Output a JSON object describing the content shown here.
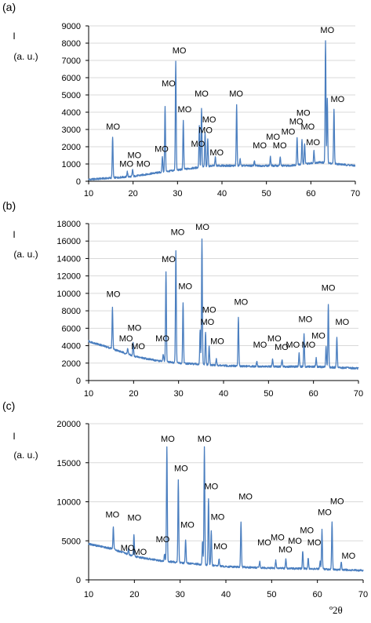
{
  "x_unit": "º2θ",
  "series_color": "#4a7ebf",
  "chart_data": [
    {
      "type": "line",
      "panel_label": "(a)",
      "ylabel_line1": "I",
      "ylabel_line2": "(a. u.)",
      "xlim": [
        10,
        70
      ],
      "ylim": [
        0,
        9000
      ],
      "xticks": [
        10,
        20,
        30,
        40,
        50,
        60,
        70
      ],
      "yticks": [
        0,
        1000,
        2000,
        3000,
        4000,
        5000,
        6000,
        7000,
        8000,
        9000
      ],
      "ytick_labels": [
        "0",
        "1000",
        "2000",
        "3000",
        "4000",
        "5000",
        "6000",
        "7000",
        "8000",
        "9000"
      ],
      "baseline": [
        [
          10,
          100
        ],
        [
          20,
          280
        ],
        [
          25,
          480
        ],
        [
          30,
          650
        ],
        [
          38,
          900
        ],
        [
          45,
          900
        ],
        [
          55,
          900
        ],
        [
          62,
          1100
        ],
        [
          70,
          900
        ]
      ],
      "peaks": [
        [
          15.4,
          2400
        ],
        [
          18.7,
          300
        ],
        [
          19.9,
          400
        ],
        [
          26.6,
          900
        ],
        [
          27.2,
          3800
        ],
        [
          29.6,
          6300
        ],
        [
          31.3,
          2800
        ],
        [
          34.9,
          2400
        ],
        [
          35.4,
          3400
        ],
        [
          36.2,
          2000
        ],
        [
          36.8,
          1600
        ],
        [
          38.5,
          500
        ],
        [
          43.3,
          3500
        ],
        [
          44.1,
          400
        ],
        [
          47.3,
          300
        ],
        [
          50.9,
          500
        ],
        [
          53.1,
          500
        ],
        [
          56.9,
          1600
        ],
        [
          58.0,
          1400
        ],
        [
          58.6,
          1200
        ],
        [
          60.7,
          700
        ],
        [
          63.3,
          7100
        ],
        [
          63.7,
          3700
        ],
        [
          65.2,
          3200
        ]
      ],
      "annotations": [
        {
          "text": "MO",
          "x": 15.5,
          "y": 3000
        },
        {
          "text": "MO",
          "x": 18.5,
          "y": 850
        },
        {
          "text": "MO",
          "x": 20.3,
          "y": 1350
        },
        {
          "text": "MO",
          "x": 22.3,
          "y": 850
        },
        {
          "text": "MO",
          "x": 26.4,
          "y": 1700
        },
        {
          "text": "MO",
          "x": 28.0,
          "y": 5500
        },
        {
          "text": "MO",
          "x": 30.4,
          "y": 7400
        },
        {
          "text": "MO",
          "x": 31.6,
          "y": 4000
        },
        {
          "text": "MO",
          "x": 34.6,
          "y": 2000
        },
        {
          "text": "MO",
          "x": 35.4,
          "y": 4900
        },
        {
          "text": "MO",
          "x": 36.3,
          "y": 2800
        },
        {
          "text": "MO",
          "x": 37.1,
          "y": 3400
        },
        {
          "text": "MO",
          "x": 38.8,
          "y": 1500
        },
        {
          "text": "MO",
          "x": 43.2,
          "y": 4900
        },
        {
          "text": "MO",
          "x": 48.5,
          "y": 1900
        },
        {
          "text": "MO",
          "x": 51.5,
          "y": 2400
        },
        {
          "text": "MO",
          "x": 53.0,
          "y": 1900
        },
        {
          "text": "MO",
          "x": 54.9,
          "y": 2700
        },
        {
          "text": "MO",
          "x": 56.7,
          "y": 3300
        },
        {
          "text": "MO",
          "x": 58.3,
          "y": 3800
        },
        {
          "text": "MO",
          "x": 59.3,
          "y": 3000
        },
        {
          "text": "MO",
          "x": 60.5,
          "y": 2100
        },
        {
          "text": "MO",
          "x": 63.7,
          "y": 8600
        },
        {
          "text": "MO",
          "x": 66.0,
          "y": 4600
        }
      ]
    },
    {
      "type": "line",
      "panel_label": "(b)",
      "ylabel_line1": "I",
      "ylabel_line2": "(a. u.)",
      "xlim": [
        10,
        70
      ],
      "ylim": [
        0,
        18000
      ],
      "xticks": [
        10,
        20,
        30,
        40,
        50,
        60,
        70
      ],
      "yticks": [
        0,
        2000,
        4000,
        6000,
        8000,
        10000,
        12000,
        14000,
        16000,
        18000
      ],
      "ytick_labels": [
        "0",
        "2000",
        "4000",
        "6000",
        "8000",
        "10000",
        "12000",
        "14000",
        "16000",
        "18000"
      ],
      "baseline": [
        [
          10,
          4500
        ],
        [
          15,
          3700
        ],
        [
          20,
          2800
        ],
        [
          25,
          2300
        ],
        [
          30,
          2000
        ],
        [
          40,
          1700
        ],
        [
          50,
          1600
        ],
        [
          60,
          1600
        ],
        [
          70,
          1400
        ]
      ],
      "peaks": [
        [
          15.3,
          4700
        ],
        [
          18.7,
          700
        ],
        [
          19.9,
          1500
        ],
        [
          26.6,
          800
        ],
        [
          27.2,
          10300
        ],
        [
          29.4,
          12800
        ],
        [
          31.0,
          7000
        ],
        [
          34.8,
          4000
        ],
        [
          35.2,
          14300
        ],
        [
          36.0,
          3800
        ],
        [
          36.8,
          2200
        ],
        [
          38.4,
          800
        ],
        [
          43.3,
          5600
        ],
        [
          47.4,
          600
        ],
        [
          50.9,
          800
        ],
        [
          53.0,
          800
        ],
        [
          56.8,
          1500
        ],
        [
          57.9,
          3700
        ],
        [
          60.6,
          1000
        ],
        [
          62.8,
          2300
        ],
        [
          63.3,
          7200
        ],
        [
          65.2,
          3500
        ]
      ],
      "annotations": [
        {
          "text": "MO",
          "x": 15.5,
          "y": 9600
        },
        {
          "text": "MO",
          "x": 18.3,
          "y": 4500
        },
        {
          "text": "MO",
          "x": 20.2,
          "y": 5700
        },
        {
          "text": "MO",
          "x": 21.0,
          "y": 3600
        },
        {
          "text": "MO",
          "x": 26.4,
          "y": 4500
        },
        {
          "text": "MO",
          "x": 27.8,
          "y": 13600
        },
        {
          "text": "MO",
          "x": 29.8,
          "y": 16700
        },
        {
          "text": "MO",
          "x": 31.5,
          "y": 10500
        },
        {
          "text": "MO",
          "x": 35.3,
          "y": 17300
        },
        {
          "text": "MO",
          "x": 36.8,
          "y": 7800
        },
        {
          "text": "MO",
          "x": 36.4,
          "y": 6400
        },
        {
          "text": "MO",
          "x": 38.6,
          "y": 4200
        },
        {
          "text": "MO",
          "x": 43.9,
          "y": 8700
        },
        {
          "text": "MO",
          "x": 48.1,
          "y": 3800
        },
        {
          "text": "MO",
          "x": 51.3,
          "y": 4500
        },
        {
          "text": "MO",
          "x": 52.9,
          "y": 3500
        },
        {
          "text": "MO",
          "x": 55.4,
          "y": 3800
        },
        {
          "text": "MO",
          "x": 58.2,
          "y": 6700
        },
        {
          "text": "MO",
          "x": 58.9,
          "y": 3800
        },
        {
          "text": "MO",
          "x": 61.1,
          "y": 4800
        },
        {
          "text": "MO",
          "x": 63.3,
          "y": 10300
        },
        {
          "text": "MO",
          "x": 66.4,
          "y": 6400
        }
      ]
    },
    {
      "type": "line",
      "panel_label": "(c)",
      "ylabel_line1": "I",
      "ylabel_line2": "(a. u.)",
      "xlim": [
        10,
        70
      ],
      "ylim": [
        0,
        20000
      ],
      "xticks": [
        10,
        20,
        30,
        40,
        50,
        60,
        70
      ],
      "yticks": [
        0,
        5000,
        10000,
        15000,
        20000
      ],
      "ytick_labels": [
        "0",
        "5000",
        "10000",
        "15000",
        "20000"
      ],
      "baseline": [
        [
          10,
          4600
        ],
        [
          15,
          4000
        ],
        [
          20,
          3000
        ],
        [
          25,
          2500
        ],
        [
          30,
          2200
        ],
        [
          40,
          1700
        ],
        [
          50,
          1500
        ],
        [
          60,
          1400
        ],
        [
          70,
          1200
        ]
      ],
      "peaks": [
        [
          15.4,
          2800
        ],
        [
          18.7,
          700
        ],
        [
          19.9,
          2700
        ],
        [
          26.6,
          900
        ],
        [
          27.1,
          14600
        ],
        [
          29.6,
          10500
        ],
        [
          31.2,
          3000
        ],
        [
          34.9,
          3000
        ],
        [
          35.3,
          15000
        ],
        [
          36.2,
          8600
        ],
        [
          36.8,
          4500
        ],
        [
          38.5,
          900
        ],
        [
          43.3,
          5800
        ],
        [
          47.4,
          800
        ],
        [
          50.9,
          1000
        ],
        [
          53.1,
          1200
        ],
        [
          56.8,
          2300
        ],
        [
          58.0,
          1400
        ],
        [
          60.6,
          1000
        ],
        [
          61.0,
          5000
        ],
        [
          63.2,
          6000
        ],
        [
          65.2,
          1000
        ]
      ],
      "annotations": [
        {
          "text": "MO",
          "x": 15.2,
          "y": 8000
        },
        {
          "text": "MO",
          "x": 18.5,
          "y": 3700
        },
        {
          "text": "MO",
          "x": 20.0,
          "y": 7600
        },
        {
          "text": "MO",
          "x": 21.2,
          "y": 3200
        },
        {
          "text": "MO",
          "x": 26.2,
          "y": 4800
        },
        {
          "text": "MO",
          "x": 27.3,
          "y": 17700
        },
        {
          "text": "MO",
          "x": 30.2,
          "y": 13900
        },
        {
          "text": "MO",
          "x": 31.6,
          "y": 6700
        },
        {
          "text": "MO",
          "x": 35.3,
          "y": 17700
        },
        {
          "text": "MO",
          "x": 36.8,
          "y": 11600
        },
        {
          "text": "MO",
          "x": 38.2,
          "y": 7700
        },
        {
          "text": "MO",
          "x": 38.8,
          "y": 3900
        },
        {
          "text": "MO",
          "x": 44.3,
          "y": 10300
        },
        {
          "text": "MO",
          "x": 48.4,
          "y": 4400
        },
        {
          "text": "MO",
          "x": 51.3,
          "y": 5100
        },
        {
          "text": "MO",
          "x": 53.0,
          "y": 3500
        },
        {
          "text": "MO",
          "x": 55.1,
          "y": 4600
        },
        {
          "text": "MO",
          "x": 57.7,
          "y": 6000
        },
        {
          "text": "MO",
          "x": 59.3,
          "y": 4400
        },
        {
          "text": "MO",
          "x": 61.6,
          "y": 8300
        },
        {
          "text": "MO",
          "x": 64.3,
          "y": 9700
        },
        {
          "text": "MO",
          "x": 66.8,
          "y": 2700
        }
      ]
    }
  ]
}
